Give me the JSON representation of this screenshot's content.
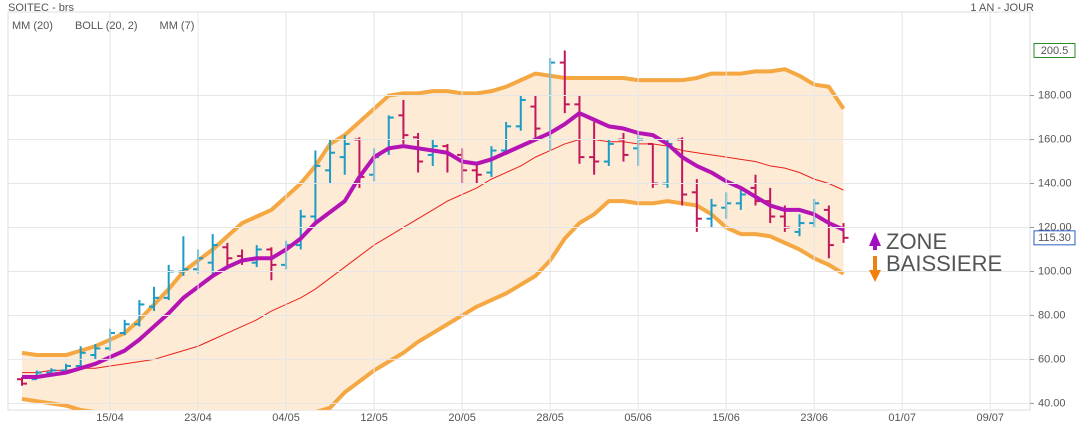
{
  "chart_data": {
    "type": "ohlc",
    "title": "SOITEC - brs",
    "subtitle": "1 AN - JOUR",
    "categories": [
      null,
      null,
      null,
      null,
      null,
      null,
      "15/04",
      null,
      null,
      null,
      null,
      null,
      "23/04",
      null,
      null,
      null,
      null,
      null,
      "04/05",
      null,
      null,
      null,
      null,
      null,
      "12/05",
      null,
      null,
      null,
      null,
      null,
      "20/05",
      null,
      null,
      null,
      null,
      null,
      "28/05",
      null,
      null,
      null,
      null,
      null,
      "05/06",
      null,
      null,
      null,
      null,
      null,
      "15/06",
      null,
      null,
      null,
      null,
      null,
      "23/06",
      null,
      null,
      null,
      null,
      null,
      "01/07",
      null,
      null,
      null,
      null,
      null,
      "09/07",
      null,
      null
    ],
    "open": [
      51,
      51,
      54,
      55,
      57,
      62,
      65,
      72,
      76,
      84,
      88,
      100,
      101,
      104,
      111,
      107,
      104,
      110,
      103,
      112,
      125,
      146,
      152,
      160,
      144,
      155,
      171,
      161,
      153,
      157,
      153,
      146,
      145,
      155,
      166,
      175,
      162,
      195,
      176,
      152,
      150,
      160,
      156,
      158,
      140,
      160,
      136,
      124,
      129,
      131,
      138,
      132,
      125,
      118,
      122,
      128,
      120,
      null,
      null,
      null,
      null,
      null,
      null,
      null,
      null,
      null,
      null,
      null,
      null
    ],
    "high": [
      52,
      55,
      56,
      58,
      66,
      67,
      74,
      78,
      87,
      93,
      103,
      116,
      110,
      117,
      113,
      110,
      112,
      111,
      114,
      128,
      155,
      160,
      162,
      161,
      156,
      171,
      178,
      163,
      160,
      158,
      156,
      150,
      157,
      168,
      180,
      180,
      197,
      200.5,
      180,
      168,
      160,
      163,
      163,
      158,
      160,
      161,
      142,
      133,
      136,
      138,
      144,
      138,
      130,
      126,
      133,
      130,
      122,
      null,
      null,
      null,
      null,
      null,
      null,
      null,
      null,
      null,
      null,
      null,
      null
    ],
    "low": [
      48,
      51,
      53,
      54,
      56,
      60,
      64,
      71,
      75,
      82,
      87,
      98,
      99,
      99,
      101,
      103,
      102,
      96,
      101,
      110,
      121,
      140,
      144,
      138,
      141,
      153,
      158,
      145,
      148,
      145,
      140,
      140,
      143,
      153,
      164,
      160,
      155,
      172,
      149,
      144,
      148,
      150,
      148,
      138,
      138,
      130,
      118,
      120,
      124,
      128,
      130,
      122,
      118,
      116,
      120,
      106,
      113,
      null,
      null,
      null,
      null,
      null,
      null,
      null,
      null,
      null,
      null,
      null,
      null
    ],
    "close": [
      49,
      54,
      55,
      57,
      63,
      65,
      72,
      76,
      85,
      88,
      100,
      101,
      106,
      112,
      106,
      105,
      110,
      103,
      112,
      125,
      148,
      154,
      158,
      143,
      152,
      170,
      162,
      150,
      157,
      153,
      146,
      144,
      155,
      166,
      178,
      165,
      195,
      176,
      152,
      150,
      158,
      153,
      160,
      140,
      158,
      135,
      124,
      130,
      131,
      135,
      132,
      125,
      120,
      122,
      131,
      112,
      115.3,
      null,
      null,
      null,
      null,
      null,
      null,
      null,
      null,
      null,
      null,
      null,
      null
    ],
    "up_color": "#1b9bc6",
    "down_color": "#c2185b",
    "series": [
      {
        "name": "MM (20)",
        "color": "#e8221b",
        "values": [
          54,
          54,
          55,
          55,
          56,
          56,
          57,
          58,
          59,
          60,
          62,
          64,
          66,
          69,
          72,
          75,
          78,
          82,
          85,
          88,
          92,
          97,
          102,
          107,
          112,
          116,
          120,
          124,
          128,
          132,
          135,
          138,
          142,
          145,
          148,
          152,
          155,
          158,
          160,
          160,
          159,
          159,
          158,
          158,
          157,
          155,
          154,
          153,
          152,
          151,
          150,
          148,
          147,
          145,
          142,
          140,
          137,
          null,
          null,
          null,
          null,
          null,
          null,
          null,
          null,
          null,
          null,
          null,
          null
        ]
      },
      {
        "name": "BOLL (20, 2)",
        "color": "#f5a742",
        "fill": "#fdebd6",
        "upper": [
          63,
          62,
          62,
          62,
          64,
          66,
          69,
          72,
          78,
          85,
          92,
          100,
          105,
          110,
          116,
          122,
          125,
          128,
          134,
          140,
          148,
          158,
          162,
          168,
          174,
          180,
          181,
          181,
          182,
          182,
          181,
          181,
          182,
          184,
          187,
          190,
          189,
          188,
          188,
          188,
          188,
          188,
          187,
          187,
          187,
          187,
          188,
          190,
          190,
          190,
          191,
          191,
          192,
          189,
          185,
          184,
          174,
          null,
          null,
          null,
          null,
          null,
          null,
          null,
          null,
          null,
          null,
          null,
          null
        ],
        "lower": [
          42,
          41,
          40,
          39,
          37,
          36,
          35,
          34,
          33,
          32,
          31,
          30,
          29,
          28,
          27,
          27,
          28,
          30,
          32,
          34,
          36,
          38,
          45,
          50,
          55,
          59,
          63,
          68,
          72,
          76,
          80,
          84,
          87,
          90,
          94,
          98,
          105,
          115,
          122,
          126,
          132,
          132,
          131,
          131,
          132,
          131,
          130,
          126,
          120,
          117,
          117,
          116,
          113,
          110,
          106,
          103,
          99,
          null,
          null,
          null,
          null,
          null,
          null,
          null,
          null,
          null,
          null,
          null,
          null
        ]
      },
      {
        "name": "MM (7)",
        "color": "#b414b4",
        "values": [
          52,
          52,
          53,
          54,
          56,
          58,
          61,
          64,
          69,
          75,
          81,
          88,
          93,
          98,
          102,
          105,
          106,
          106,
          110,
          115,
          122,
          127,
          132,
          143,
          152,
          156,
          157,
          156,
          155,
          154,
          150,
          149,
          151,
          154,
          157,
          160,
          163,
          167,
          172,
          169,
          166,
          165,
          163,
          162,
          158,
          152,
          148,
          145,
          141,
          138,
          134,
          130,
          128,
          128,
          126,
          122,
          119,
          null,
          null,
          null,
          null,
          null,
          null,
          null,
          null,
          null,
          null,
          null,
          null
        ]
      }
    ],
    "ylim": [
      37,
      218
    ],
    "yticks": [
      {
        "value": 40,
        "label": "40.00"
      },
      {
        "value": 60,
        "label": "60.00"
      },
      {
        "value": 80,
        "label": "80.00"
      },
      {
        "value": 100,
        "label": "100.00"
      },
      {
        "value": 120,
        "label": "120.00"
      },
      {
        "value": 140,
        "label": "140.00"
      },
      {
        "value": 160,
        "label": "160.00"
      },
      {
        "value": 180,
        "label": "180.00"
      }
    ],
    "grid": true,
    "price_markers": [
      {
        "value": 200.5,
        "color": "#2a8a2a"
      },
      {
        "value": 115.3,
        "label": "115.30",
        "color": "#2a5fbf"
      }
    ],
    "annotation": [
      "ZONE",
      "BAISSIERE"
    ],
    "annotation_color": "#1020a8"
  }
}
